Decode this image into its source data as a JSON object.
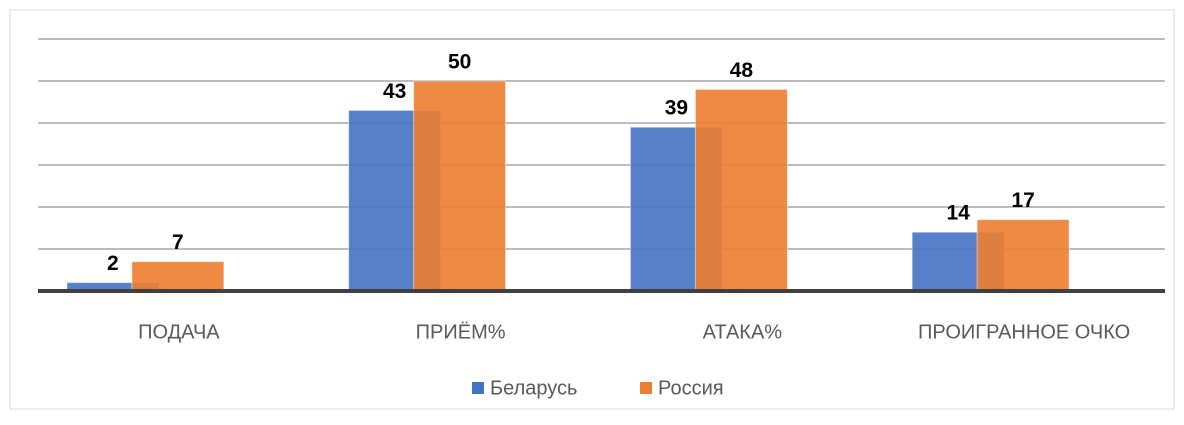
{
  "chart_data": {
    "type": "bar",
    "categories": [
      "ПОДАЧА",
      "ПРИЁМ%",
      "АТАКА%",
      "ПРОИГРАННОЕ ОЧКО"
    ],
    "series": [
      {
        "name": "Беларусь",
        "color": "#4472c4",
        "values": [
          2,
          43,
          39,
          14
        ]
      },
      {
        "name": "Россия",
        "color": "#ed7d31",
        "values": [
          7,
          50,
          48,
          17
        ]
      }
    ],
    "ylim": [
      0,
      60
    ],
    "yticks": [
      0,
      10,
      20,
      30,
      40,
      50,
      60
    ],
    "grid": true,
    "legend": "bottom"
  }
}
